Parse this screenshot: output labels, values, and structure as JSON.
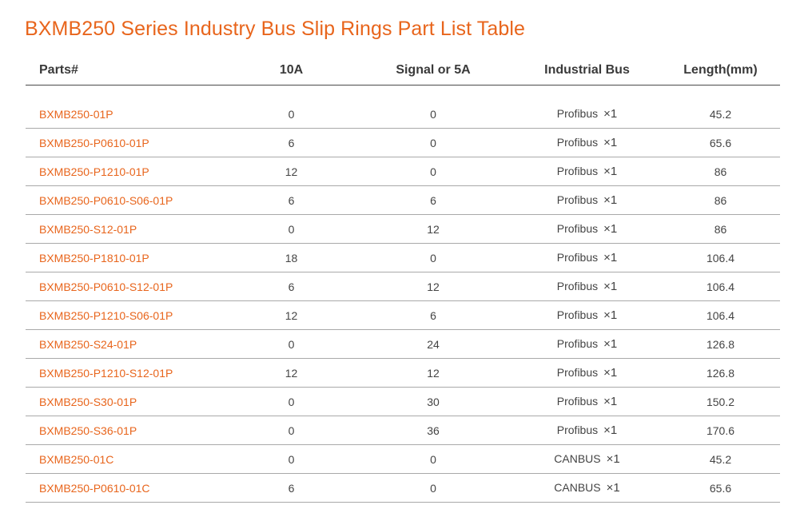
{
  "title": "BXMB250 Series Industry Bus Slip Rings Part List Table",
  "accent_color": "#e8651c",
  "headers": {
    "part": "Parts#",
    "current": "10A",
    "signal": "Signal or 5A",
    "bus": "Industrial Bus",
    "length": "Length(mm)"
  },
  "multiplier_symbol": "×1",
  "rows": [
    {
      "part": "BXMB250-01P",
      "current": "0",
      "signal": "0",
      "bus": "Profibus",
      "length": "45.2"
    },
    {
      "part": "BXMB250-P0610-01P",
      "current": "6",
      "signal": "0",
      "bus": "Profibus",
      "length": "65.6"
    },
    {
      "part": "BXMB250-P1210-01P",
      "current": "12",
      "signal": "0",
      "bus": "Profibus",
      "length": "86"
    },
    {
      "part": "BXMB250-P0610-S06-01P",
      "current": "6",
      "signal": "6",
      "bus": "Profibus",
      "length": "86"
    },
    {
      "part": "BXMB250-S12-01P",
      "current": "0",
      "signal": "12",
      "bus": "Profibus",
      "length": "86"
    },
    {
      "part": "BXMB250-P1810-01P",
      "current": "18",
      "signal": "0",
      "bus": "Profibus",
      "length": "106.4"
    },
    {
      "part": "BXMB250-P0610-S12-01P",
      "current": "6",
      "signal": "12",
      "bus": "Profibus",
      "length": "106.4"
    },
    {
      "part": "BXMB250-P1210-S06-01P",
      "current": "12",
      "signal": "6",
      "bus": "Profibus",
      "length": "106.4"
    },
    {
      "part": "BXMB250-S24-01P",
      "current": "0",
      "signal": "24",
      "bus": "Profibus",
      "length": "126.8"
    },
    {
      "part": "BXMB250-P1210-S12-01P",
      "current": "12",
      "signal": "12",
      "bus": "Profibus",
      "length": "126.8"
    },
    {
      "part": "BXMB250-S30-01P",
      "current": "0",
      "signal": "30",
      "bus": "Profibus",
      "length": "150.2"
    },
    {
      "part": "BXMB250-S36-01P",
      "current": "0",
      "signal": "36",
      "bus": "Profibus",
      "length": "170.6"
    },
    {
      "part": "BXMB250-01C",
      "current": "0",
      "signal": "0",
      "bus": "CANBUS",
      "length": "45.2"
    },
    {
      "part": "BXMB250-P0610-01C",
      "current": "6",
      "signal": "0",
      "bus": "CANBUS",
      "length": "65.6"
    }
  ]
}
